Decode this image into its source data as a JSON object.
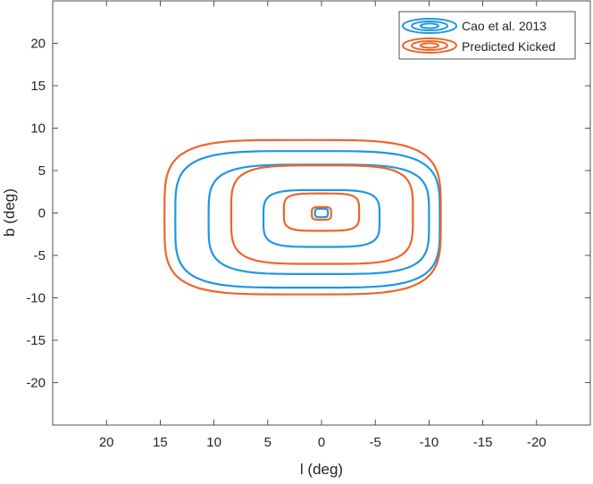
{
  "chart_data": {
    "type": "contour",
    "xlabel": "l (deg)",
    "ylabel": "b (deg)",
    "xlim": [
      25,
      -25
    ],
    "ylim": [
      -25,
      25
    ],
    "x_reversed": true,
    "x_ticks": [
      20,
      15,
      10,
      5,
      0,
      -5,
      -10,
      -15,
      -20
    ],
    "y_ticks": [
      20,
      15,
      10,
      5,
      0,
      -5,
      -10,
      -15,
      -20
    ],
    "grid": false,
    "legend_position": "top-right",
    "series": [
      {
        "name": "Cao et al. 2013",
        "color": "#1e96e6",
        "contours": [
          {
            "x_min": -11.0,
            "x_max": 13.6,
            "y_min": -8.8,
            "y_max": 7.3
          },
          {
            "x_min": -10.0,
            "x_max": 10.5,
            "y_min": -7.2,
            "y_max": 5.7
          },
          {
            "x_min": -5.4,
            "x_max": 5.4,
            "y_min": -4.0,
            "y_max": 2.7
          },
          {
            "x_min": -0.6,
            "x_max": 0.6,
            "y_min": -0.5,
            "y_max": 0.5
          }
        ]
      },
      {
        "name": "Predicted Kicked",
        "color": "#f06428",
        "contours": [
          {
            "x_min": -11.1,
            "x_max": 14.6,
            "y_min": -9.6,
            "y_max": 8.6
          },
          {
            "x_min": -8.5,
            "x_max": 8.4,
            "y_min": -6.0,
            "y_max": 5.6
          },
          {
            "x_min": -3.5,
            "x_max": 3.5,
            "y_min": -2.1,
            "y_max": 2.3
          },
          {
            "x_min": -0.9,
            "x_max": 0.9,
            "y_min": -0.8,
            "y_max": 0.7
          }
        ]
      }
    ]
  }
}
